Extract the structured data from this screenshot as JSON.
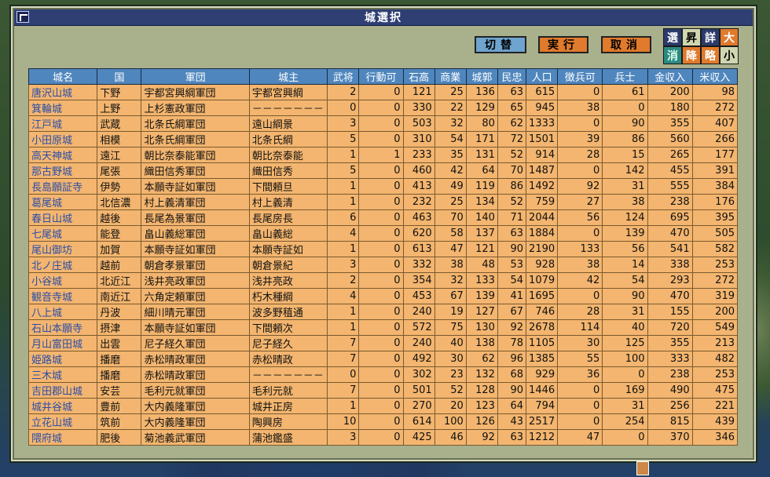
{
  "window": {
    "title": "城選択"
  },
  "buttons": {
    "switch": "切替",
    "execute": "実行",
    "cancel": "取消"
  },
  "sort": {
    "row1": [
      "選",
      "昇",
      "詳",
      "大"
    ],
    "row2": [
      "消",
      "降",
      "略",
      "小"
    ]
  },
  "table": {
    "headers": [
      "城名",
      "国",
      "軍団",
      "城主",
      "武将",
      "行動可",
      "石高",
      "商業",
      "城郭",
      "民忠",
      "人口",
      "徴兵可",
      "兵士",
      "金収入",
      "米収入"
    ],
    "rows": [
      [
        "唐沢山城",
        "下野",
        "宇都宮興綱軍団",
        "宇都宮興綱",
        "2",
        "0",
        "121",
        "25",
        "136",
        "63",
        "615",
        "0",
        "61",
        "200",
        "98"
      ],
      [
        "箕輪城",
        "上野",
        "上杉憲政軍団",
        "－－－－－－－",
        "0",
        "0",
        "330",
        "22",
        "129",
        "65",
        "945",
        "38",
        "0",
        "180",
        "272"
      ],
      [
        "江戸城",
        "武蔵",
        "北条氏綱軍団",
        "遠山綱景",
        "3",
        "0",
        "503",
        "32",
        "80",
        "62",
        "1333",
        "0",
        "90",
        "355",
        "407"
      ],
      [
        "小田原城",
        "相模",
        "北条氏綱軍団",
        "北条氏綱",
        "5",
        "0",
        "310",
        "54",
        "171",
        "72",
        "1501",
        "39",
        "86",
        "560",
        "266"
      ],
      [
        "高天神城",
        "遠江",
        "朝比奈泰能軍団",
        "朝比奈泰能",
        "1",
        "1",
        "233",
        "35",
        "131",
        "52",
        "914",
        "28",
        "15",
        "265",
        "177"
      ],
      [
        "那古野城",
        "尾張",
        "織田信秀軍団",
        "織田信秀",
        "5",
        "0",
        "460",
        "42",
        "64",
        "70",
        "1487",
        "0",
        "142",
        "455",
        "391"
      ],
      [
        "長島願証寺",
        "伊勢",
        "本願寺証如軍団",
        "下間頼旦",
        "1",
        "0",
        "413",
        "49",
        "119",
        "86",
        "1492",
        "92",
        "31",
        "555",
        "384"
      ],
      [
        "葛尾城",
        "北信濃",
        "村上義清軍団",
        "村上義清",
        "1",
        "0",
        "232",
        "25",
        "134",
        "52",
        "759",
        "27",
        "38",
        "238",
        "176"
      ],
      [
        "春日山城",
        "越後",
        "長尾為景軍団",
        "長尾房長",
        "6",
        "0",
        "463",
        "70",
        "140",
        "71",
        "2044",
        "56",
        "124",
        "695",
        "395"
      ],
      [
        "七尾城",
        "能登",
        "畠山義総軍団",
        "畠山義総",
        "4",
        "0",
        "620",
        "58",
        "137",
        "63",
        "1884",
        "0",
        "139",
        "470",
        "505"
      ],
      [
        "尾山御坊",
        "加賀",
        "本願寺証如軍団",
        "本願寺証如",
        "1",
        "0",
        "613",
        "47",
        "121",
        "90",
        "2190",
        "133",
        "56",
        "541",
        "582"
      ],
      [
        "北ノ庄城",
        "越前",
        "朝倉孝景軍団",
        "朝倉景紀",
        "3",
        "0",
        "332",
        "38",
        "48",
        "53",
        "928",
        "38",
        "14",
        "338",
        "253"
      ],
      [
        "小谷城",
        "北近江",
        "浅井亮政軍団",
        "浅井亮政",
        "2",
        "0",
        "354",
        "32",
        "133",
        "54",
        "1079",
        "42",
        "54",
        "293",
        "272"
      ],
      [
        "観音寺城",
        "南近江",
        "六角定頼軍団",
        "朽木種綱",
        "4",
        "0",
        "453",
        "67",
        "139",
        "41",
        "1695",
        "0",
        "90",
        "470",
        "319"
      ],
      [
        "八上城",
        "丹波",
        "細川晴元軍団",
        "波多野稙通",
        "1",
        "0",
        "240",
        "19",
        "127",
        "67",
        "746",
        "28",
        "31",
        "155",
        "200"
      ],
      [
        "石山本願寺",
        "摂津",
        "本願寺証如軍団",
        "下間頼次",
        "1",
        "0",
        "572",
        "75",
        "130",
        "92",
        "2678",
        "114",
        "40",
        "720",
        "549"
      ],
      [
        "月山富田城",
        "出雲",
        "尼子経久軍団",
        "尼子経久",
        "7",
        "0",
        "240",
        "40",
        "138",
        "78",
        "1105",
        "30",
        "125",
        "355",
        "213"
      ],
      [
        "姫路城",
        "播磨",
        "赤松晴政軍団",
        "赤松晴政",
        "7",
        "0",
        "492",
        "30",
        "62",
        "96",
        "1385",
        "55",
        "100",
        "333",
        "482"
      ],
      [
        "三木城",
        "播磨",
        "赤松晴政軍団",
        "－－－－－－－",
        "0",
        "0",
        "302",
        "23",
        "132",
        "68",
        "929",
        "36",
        "0",
        "238",
        "253"
      ],
      [
        "吉田郡山城",
        "安芸",
        "毛利元就軍団",
        "毛利元就",
        "7",
        "0",
        "501",
        "52",
        "128",
        "90",
        "1446",
        "0",
        "169",
        "490",
        "475"
      ],
      [
        "城井谷城",
        "豊前",
        "大内義隆軍団",
        "城井正房",
        "1",
        "0",
        "270",
        "20",
        "123",
        "64",
        "794",
        "0",
        "31",
        "256",
        "221"
      ],
      [
        "立花山城",
        "筑前",
        "大内義隆軍団",
        "陶興房",
        "10",
        "0",
        "614",
        "100",
        "126",
        "43",
        "2517",
        "0",
        "254",
        "815",
        "439"
      ],
      [
        "隈府城",
        "肥後",
        "菊池義武軍団",
        "蒲池鑑盛",
        "3",
        "0",
        "425",
        "46",
        "92",
        "63",
        "1212",
        "47",
        "0",
        "370",
        "346"
      ]
    ]
  }
}
